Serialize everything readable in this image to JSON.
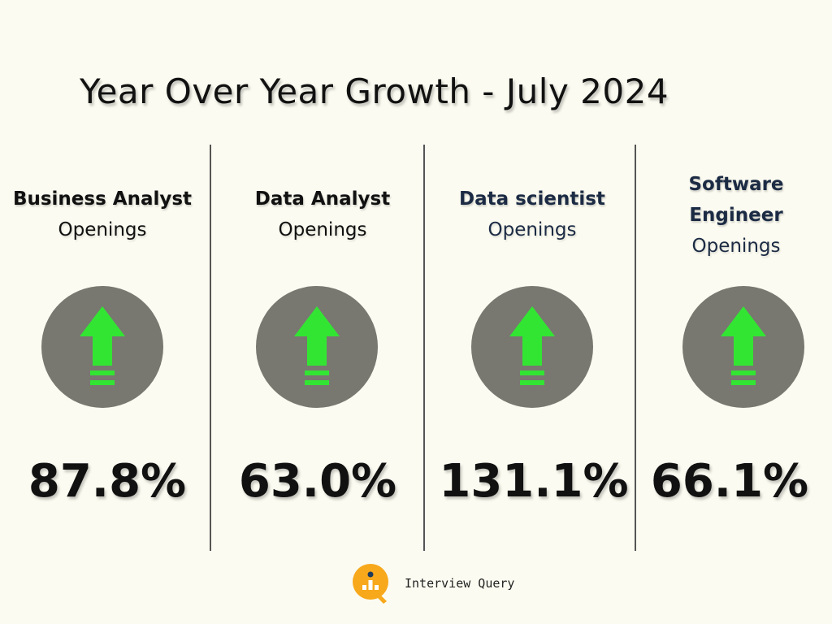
{
  "title": "Year Over Year Growth - July 2024",
  "colors": {
    "background": "#fbfbf1",
    "circle": "#787770",
    "arrow": "#33e533",
    "navy_text": "#1c2b44",
    "logo_orange": "#f7a81b",
    "logo_navy": "#1b3a5c"
  },
  "cards": [
    {
      "role": "Business Analyst",
      "sub": "Openings",
      "value": "87.8%",
      "icon": "green-up-arrow-icon"
    },
    {
      "role": "Data Analyst",
      "sub": "Openings",
      "value": "63.0%",
      "icon": "green-up-arrow-icon"
    },
    {
      "role": "Data scientist",
      "sub": "Openings",
      "value": "131.1%",
      "icon": "green-up-arrow-icon"
    },
    {
      "role": "Software Engineer",
      "sub": "Openings",
      "value": "66.1%",
      "icon": "green-up-arrow-icon"
    }
  ],
  "brand": {
    "name": "Interview Query",
    "icon": "interview-query-logo-icon"
  }
}
